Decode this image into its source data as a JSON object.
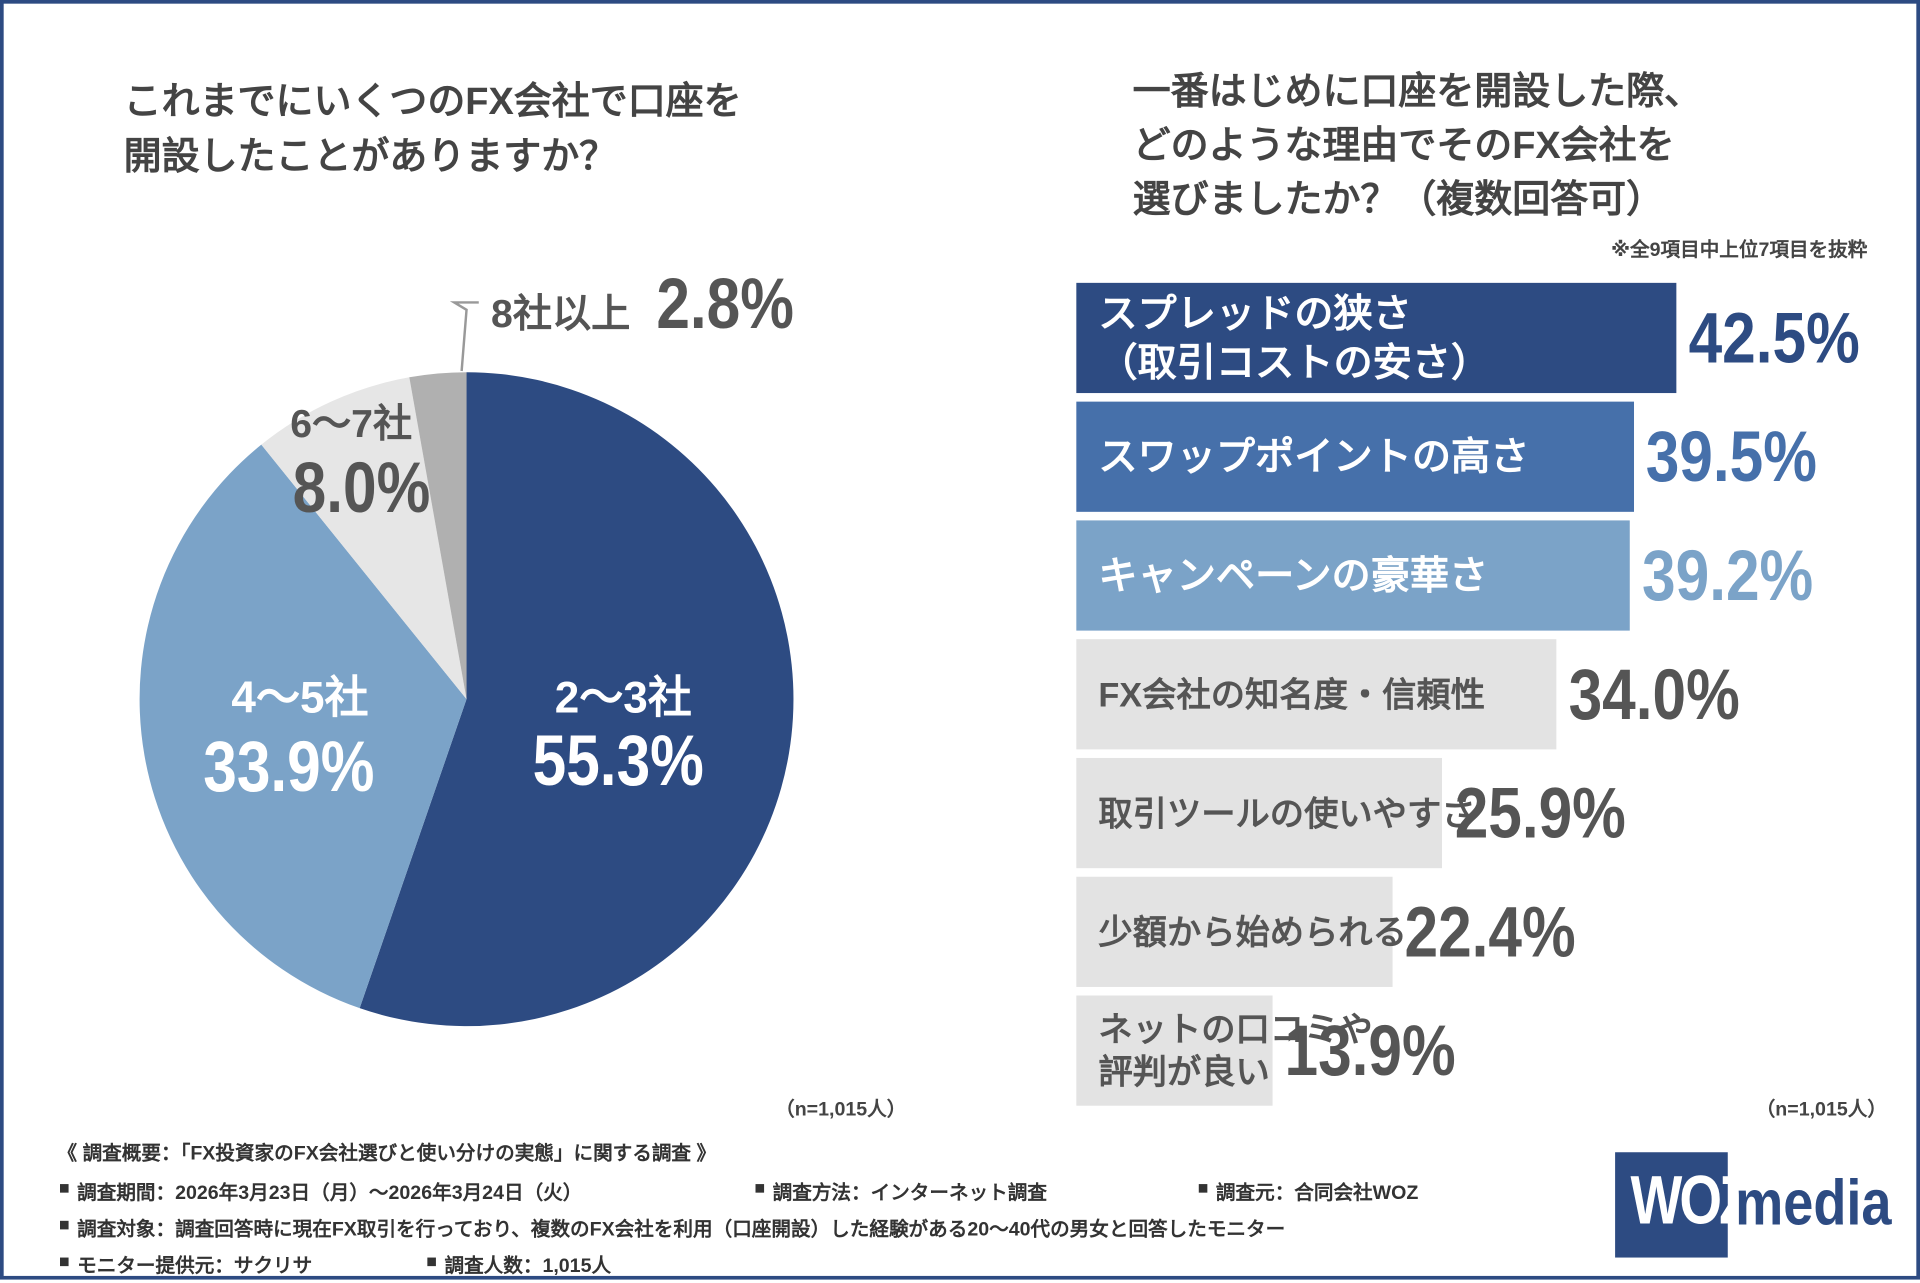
{
  "chart_data": [
    {
      "type": "pie",
      "title": "これまでにいくつのFX会社で口座を\n開設したことがありますか？",
      "categories": [
        "2〜3社",
        "4〜5社",
        "6〜7社",
        "8社以上"
      ],
      "values": [
        55.3,
        33.9,
        8.0,
        2.8
      ],
      "value_labels": [
        "55.3%",
        "33.9%",
        "8.0%",
        "2.8%"
      ],
      "colors": [
        "#2d4b82",
        "#7ba3c8",
        "#e6e6e6",
        "#b0b0b0"
      ],
      "note": "（n=1,015人）"
    },
    {
      "type": "hbar",
      "title": "一番はじめに口座を開設した際、\nどのような理由でそのFX会社を\n選びましたか？（複数回答可）",
      "subtitle": "※全9項目中上位7項目を抜粋",
      "categories": [
        "スプレッドの狭さ\n（取引コストの安さ）",
        "スワップポイントの高さ",
        "キャンペーンの豪華さ",
        "FX会社の知名度・信頼性",
        "取引ツールの使いやすさ",
        "少額から始められる",
        "ネットの口コミや\n評判が良い"
      ],
      "values": [
        42.5,
        39.5,
        39.2,
        34.0,
        25.9,
        22.4,
        13.9
      ],
      "value_labels": [
        "42.5%",
        "39.5%",
        "39.2%",
        "34.0%",
        "25.9%",
        "22.4%",
        "13.9%"
      ],
      "colors": [
        "#2d4b82",
        "#4670aa",
        "#7ba3c8",
        "#e3e3e3",
        "#e3e3e3",
        "#e3e3e3",
        "#e3e3e3"
      ],
      "note": "（n=1,015人）"
    }
  ],
  "footer": {
    "heading": "《 調査概要：「FX投資家のFX会社選びと使い分けの実態」に関する調査 》",
    "items": [
      "調査期間：2026年3月23日（月）〜2026年3月24日（火）",
      "調査方法：インターネット調査",
      "調査元：合同会社WOZ",
      "調査対象：調査回答時に現在FX取引を行っており、複数のFX会社を利用（口座開設）した経験がある20〜40代の男女と回答したモニター",
      "モニター提供元：サクリサ",
      "調査人数：1,015人"
    ]
  },
  "logo": {
    "brand": "WOZ",
    "suffix": "media"
  }
}
